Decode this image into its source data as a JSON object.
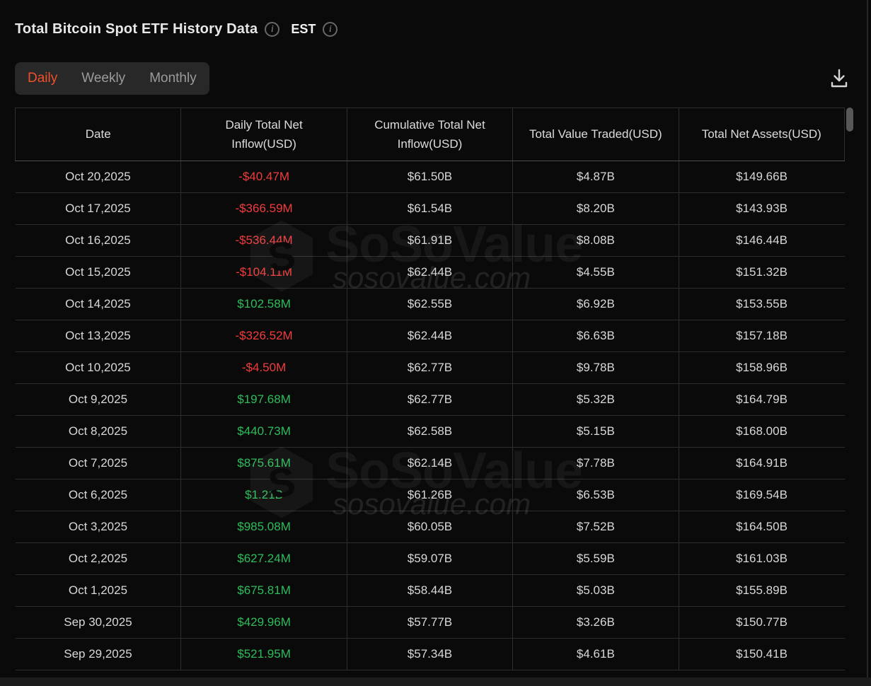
{
  "header": {
    "title": "Total Bitcoin Spot ETF History Data",
    "timezone_label": "EST",
    "info_icon": "i"
  },
  "tabs": [
    {
      "label": "Daily",
      "active": true
    },
    {
      "label": "Weekly",
      "active": false
    },
    {
      "label": "Monthly",
      "active": false
    }
  ],
  "toolbar": {
    "download_icon": "download-tray-arrow"
  },
  "colors": {
    "active_tab": "#F0502A",
    "negative": "#F23C3C",
    "positive": "#2EBD5B",
    "background": "#0A0A0A",
    "border": "#2E2E2E"
  },
  "watermark": {
    "brand": "SoSoValue",
    "domain": "sosovalue.com",
    "logo": "sosovalue-cube-icon"
  },
  "table": {
    "columns": [
      "Date",
      "Daily Total Net Inflow(USD)",
      "Cumulative Total Net Inflow(USD)",
      "Total Value Traded(USD)",
      "Total Net Assets(USD)"
    ],
    "rows": [
      {
        "date": "Oct 20,2025",
        "daily_net_inflow": "-$40.47M",
        "cumulative_net_inflow": "$61.50B",
        "total_value_traded": "$4.87B",
        "total_net_assets": "$149.66B"
      },
      {
        "date": "Oct 17,2025",
        "daily_net_inflow": "-$366.59M",
        "cumulative_net_inflow": "$61.54B",
        "total_value_traded": "$8.20B",
        "total_net_assets": "$143.93B"
      },
      {
        "date": "Oct 16,2025",
        "daily_net_inflow": "-$536.44M",
        "cumulative_net_inflow": "$61.91B",
        "total_value_traded": "$8.08B",
        "total_net_assets": "$146.44B"
      },
      {
        "date": "Oct 15,2025",
        "daily_net_inflow": "-$104.11M",
        "cumulative_net_inflow": "$62.44B",
        "total_value_traded": "$4.55B",
        "total_net_assets": "$151.32B"
      },
      {
        "date": "Oct 14,2025",
        "daily_net_inflow": "$102.58M",
        "cumulative_net_inflow": "$62.55B",
        "total_value_traded": "$6.92B",
        "total_net_assets": "$153.55B"
      },
      {
        "date": "Oct 13,2025",
        "daily_net_inflow": "-$326.52M",
        "cumulative_net_inflow": "$62.44B",
        "total_value_traded": "$6.63B",
        "total_net_assets": "$157.18B"
      },
      {
        "date": "Oct 10,2025",
        "daily_net_inflow": "-$4.50M",
        "cumulative_net_inflow": "$62.77B",
        "total_value_traded": "$9.78B",
        "total_net_assets": "$158.96B"
      },
      {
        "date": "Oct 9,2025",
        "daily_net_inflow": "$197.68M",
        "cumulative_net_inflow": "$62.77B",
        "total_value_traded": "$5.32B",
        "total_net_assets": "$164.79B"
      },
      {
        "date": "Oct 8,2025",
        "daily_net_inflow": "$440.73M",
        "cumulative_net_inflow": "$62.58B",
        "total_value_traded": "$5.15B",
        "total_net_assets": "$168.00B"
      },
      {
        "date": "Oct 7,2025",
        "daily_net_inflow": "$875.61M",
        "cumulative_net_inflow": "$62.14B",
        "total_value_traded": "$7.78B",
        "total_net_assets": "$164.91B"
      },
      {
        "date": "Oct 6,2025",
        "daily_net_inflow": "$1.21B",
        "cumulative_net_inflow": "$61.26B",
        "total_value_traded": "$6.53B",
        "total_net_assets": "$169.54B"
      },
      {
        "date": "Oct 3,2025",
        "daily_net_inflow": "$985.08M",
        "cumulative_net_inflow": "$60.05B",
        "total_value_traded": "$7.52B",
        "total_net_assets": "$164.50B"
      },
      {
        "date": "Oct 2,2025",
        "daily_net_inflow": "$627.24M",
        "cumulative_net_inflow": "$59.07B",
        "total_value_traded": "$5.59B",
        "total_net_assets": "$161.03B"
      },
      {
        "date": "Oct 1,2025",
        "daily_net_inflow": "$675.81M",
        "cumulative_net_inflow": "$58.44B",
        "total_value_traded": "$5.03B",
        "total_net_assets": "$155.89B"
      },
      {
        "date": "Sep 30,2025",
        "daily_net_inflow": "$429.96M",
        "cumulative_net_inflow": "$57.77B",
        "total_value_traded": "$3.26B",
        "total_net_assets": "$150.77B"
      },
      {
        "date": "Sep 29,2025",
        "daily_net_inflow": "$521.95M",
        "cumulative_net_inflow": "$57.34B",
        "total_value_traded": "$4.61B",
        "total_net_assets": "$150.41B"
      }
    ]
  }
}
